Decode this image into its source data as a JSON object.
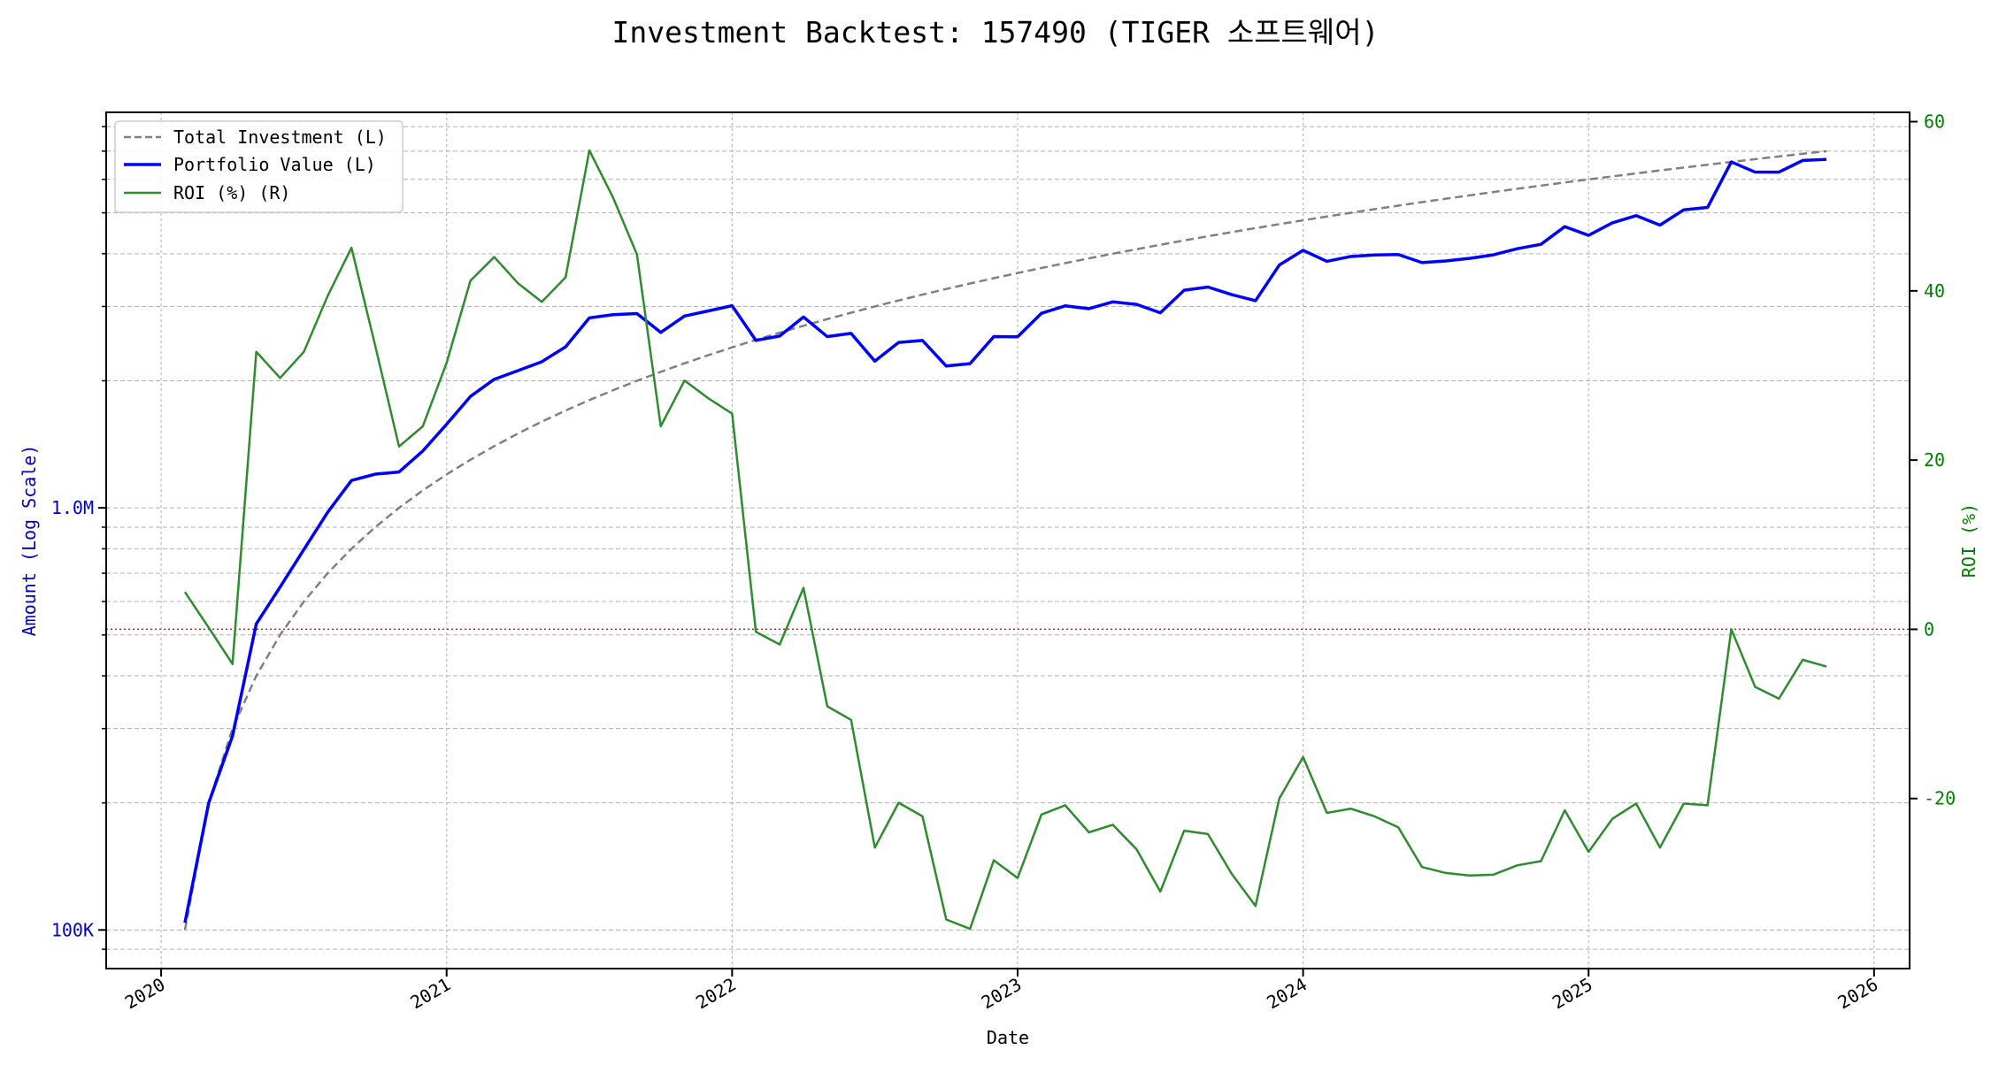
{
  "chart_data": {
    "type": "line",
    "title": "Investment Backtest: 157490 (TIGER 소프트웨어)",
    "xlabel": "Date",
    "ylabel_left": "Amount (Log Scale)",
    "ylabel_right": "ROI (%)",
    "y_left_scale": "log",
    "y_left_ticks": [
      {
        "value": 100000,
        "label": "100K"
      },
      {
        "value": 1000000,
        "label": "1.0M"
      }
    ],
    "y_right_ticks": [
      -20,
      0,
      20,
      40,
      60
    ],
    "x_ticks": [
      "2020",
      "2021",
      "2022",
      "2023",
      "2024",
      "2025",
      "2026"
    ],
    "xlim": [
      "2019-10-22",
      "2026-02-16"
    ],
    "ylim_left": [
      81000,
      8650000
    ],
    "ylim_right": [
      -40.1,
      61.1
    ],
    "grid": true,
    "legend_placement": "top-left",
    "reference_line": {
      "axis": "right",
      "value": 0,
      "color": "#ff0000",
      "style": "dotted"
    },
    "colors": {
      "investment": "#808080",
      "portfolio": "#0000ff",
      "roi": "#2e8b2e",
      "left_axis": "#0000cc",
      "right_axis": "#008000"
    },
    "legend": [
      "Total Investment (L)",
      "Portfolio Value (L)",
      "ROI (%) (R)"
    ],
    "dates": [
      "2020-02",
      "2020-03",
      "2020-04",
      "2020-05",
      "2020-06",
      "2020-07",
      "2020-08",
      "2020-09",
      "2020-10",
      "2020-11",
      "2020-12",
      "2021-01",
      "2021-02",
      "2021-03",
      "2021-04",
      "2021-05",
      "2021-06",
      "2021-07",
      "2021-08",
      "2021-09",
      "2021-10",
      "2021-11",
      "2021-12",
      "2022-01",
      "2022-02",
      "2022-03",
      "2022-04",
      "2022-05",
      "2022-06",
      "2022-07",
      "2022-08",
      "2022-09",
      "2022-10",
      "2022-11",
      "2022-12",
      "2023-01",
      "2023-02",
      "2023-03",
      "2023-04",
      "2023-05",
      "2023-06",
      "2023-07",
      "2023-08",
      "2023-09",
      "2023-10",
      "2023-11",
      "2023-12",
      "2024-01",
      "2024-02",
      "2024-03",
      "2024-04",
      "2024-05",
      "2024-06",
      "2024-07",
      "2024-08",
      "2024-09",
      "2024-10",
      "2024-11",
      "2024-12",
      "2025-01",
      "2025-02",
      "2025-03",
      "2025-04",
      "2025-05",
      "2025-06",
      "2025-07",
      "2025-08",
      "2025-09",
      "2025-10",
      "2025-11"
    ],
    "series": [
      {
        "name": "Total Investment (L)",
        "axis": "left",
        "style": "dashed",
        "values": [
          100000,
          200000,
          300000,
          400000,
          500000,
          600000,
          700000,
          800000,
          900000,
          1000000,
          1100000,
          1200000,
          1300000,
          1400000,
          1500000,
          1600000,
          1700000,
          1800000,
          1900000,
          2000000,
          2100000,
          2200000,
          2300000,
          2400000,
          2500000,
          2600000,
          2700000,
          2800000,
          2900000,
          3000000,
          3100000,
          3200000,
          3300000,
          3400000,
          3500000,
          3600000,
          3700000,
          3800000,
          3900000,
          4000000,
          4100000,
          4200000,
          4300000,
          4400000,
          4500000,
          4600000,
          4700000,
          4800000,
          4900000,
          5000000,
          5100000,
          5200000,
          5300000,
          5400000,
          5500000,
          5600000,
          5700000,
          5800000,
          5900000,
          6000000,
          6100000,
          6200000,
          6300000,
          6400000,
          6500000,
          6600000,
          6700000,
          6800000,
          6900000,
          7000000
        ]
      },
      {
        "name": "Portfolio Value (L)",
        "axis": "left",
        "style": "solid",
        "values": [
          104000,
          200000,
          288000,
          531000,
          649000,
          797000,
          976000,
          1161000,
          1202000,
          1216000,
          1364000,
          1578000,
          1836000,
          2016000,
          2114000,
          2219000,
          2407000,
          2819000,
          2869000,
          2886000,
          2604000,
          2847000,
          2928000,
          3012000,
          2493000,
          2553000,
          2832000,
          2545000,
          2590000,
          2226000,
          2465000,
          2493000,
          2168000,
          2196000,
          2545000,
          2542000,
          2890000,
          3010000,
          2964000,
          3076000,
          3034000,
          2898000,
          3277000,
          3335000,
          3200000,
          3096000,
          3760000,
          4075000,
          3837000,
          3940000,
          3973000,
          3983000,
          3811000,
          3845000,
          3900000,
          3976000,
          4110000,
          4211000,
          4637000,
          4422000,
          4734000,
          4923000,
          4675000,
          5082000,
          5148000,
          6600000,
          6244000,
          6242000,
          6652000,
          6692000
        ]
      },
      {
        "name": "ROI (%) (R)",
        "axis": "right",
        "style": "solid",
        "values": [
          4.4,
          0.2,
          -4.1,
          32.8,
          29.7,
          32.8,
          39.4,
          45.1,
          33.5,
          21.6,
          24.0,
          31.5,
          41.2,
          44.0,
          40.9,
          38.7,
          41.6,
          56.6,
          51.0,
          44.3,
          24.0,
          29.4,
          27.3,
          25.5,
          -0.3,
          -1.8,
          4.9,
          -9.1,
          -10.7,
          -25.8,
          -20.5,
          -22.1,
          -34.3,
          -35.4,
          -27.3,
          -29.4,
          -21.9,
          -20.8,
          -24.0,
          -23.1,
          -26.0,
          -31.0,
          -23.8,
          -24.2,
          -28.9,
          -32.7,
          -20.0,
          -15.1,
          -21.7,
          -21.2,
          -22.1,
          -23.4,
          -28.1,
          -28.8,
          -29.1,
          -29.0,
          -27.9,
          -27.4,
          -21.4,
          -26.3,
          -22.4,
          -20.6,
          -25.8,
          -20.6,
          -20.8,
          0.0,
          -6.8,
          -8.2,
          -3.6,
          -4.4
        ]
      }
    ]
  }
}
